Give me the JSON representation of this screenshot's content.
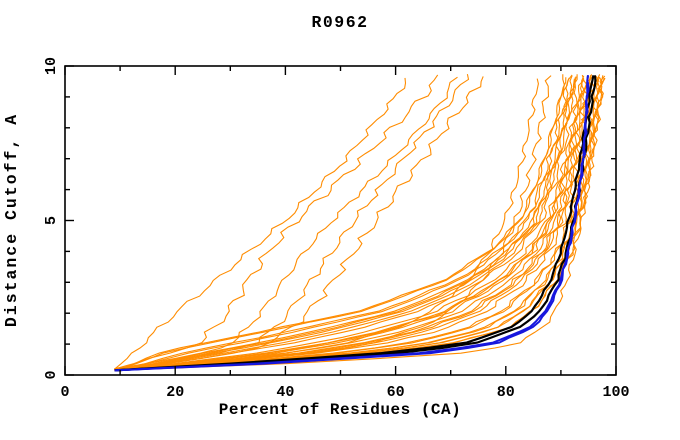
{
  "chart_data": {
    "type": "line",
    "title": "R0962",
    "xlabel": "Percent of Residues (CA)",
    "ylabel": "Distance Cutoff, A",
    "xlim": [
      0,
      100
    ],
    "ylim": [
      0,
      10
    ],
    "grid": false,
    "legend": false,
    "x_major_ticks": [
      0,
      20,
      40,
      60,
      80,
      100
    ],
    "x_minor_ticks": [
      10,
      30,
      50,
      70,
      90
    ],
    "x_tick_labels": [
      "0",
      "20",
      "40",
      "60",
      "80",
      "100"
    ],
    "y_major_ticks": [
      0,
      5,
      10
    ],
    "y_minor_ticks": [
      1,
      2,
      3,
      4,
      6,
      7,
      8,
      9
    ],
    "y_tick_labels": [
      "0",
      "5",
      "10"
    ],
    "colors": {
      "models": "#ff8c00",
      "highlight_blue": "#1717dd",
      "highlight_black": "#000000",
      "axis": "#000000",
      "background": "#ffffff"
    },
    "seed": 42,
    "apex": [
      9,
      0.15
    ],
    "cut_levels": [
      0.2,
      0.4,
      0.7,
      1,
      1.5,
      2,
      3,
      4,
      5,
      6,
      7,
      8,
      9,
      9.7
    ],
    "bundle": {
      "count": 26,
      "color": "models",
      "width": 1.1,
      "wiggle": 0.55,
      "pct_at_levels_right": [
        13,
        32,
        55,
        70,
        80,
        84.5,
        89,
        92,
        93.5,
        94.6,
        95.5,
        96.3,
        97.1,
        97.8
      ],
      "pct_at_levels_left": [
        10,
        13,
        17,
        24,
        38,
        52,
        68,
        77,
        82.5,
        85,
        87,
        88.5,
        90,
        90.6
      ]
    },
    "curves": [
      {
        "name": "outlier-model-1",
        "color": "models",
        "width": 1.1,
        "wiggle": 0.7,
        "pcts": [
          9,
          10.5,
          12.5,
          14,
          17,
          20,
          27,
          33.5,
          40,
          45.5,
          51,
          55.5,
          60,
          62.5
        ]
      },
      {
        "name": "outlier-model-2",
        "color": "models",
        "width": 1.1,
        "wiggle": 0.8,
        "pcts": [
          9,
          13,
          19,
          24,
          27,
          29.5,
          33,
          37,
          42,
          48,
          54,
          59.5,
          65,
          68
        ]
      },
      {
        "name": "outlier-model-3",
        "color": "models",
        "width": 1.1,
        "wiggle": 0.8,
        "pcts": [
          9,
          16,
          25,
          30,
          33,
          35.5,
          39.5,
          43.5,
          48.5,
          54,
          59.5,
          64.5,
          69,
          71
        ]
      },
      {
        "name": "outlier-model-4",
        "color": "models",
        "width": 1.1,
        "wiggle": 0.8,
        "pcts": [
          9,
          18,
          28,
          34,
          38,
          40.5,
          44.5,
          48.5,
          52.5,
          57,
          61.5,
          66,
          70.5,
          73
        ]
      },
      {
        "name": "outlier-model-5",
        "color": "models",
        "width": 1.1,
        "wiggle": 0.8,
        "pcts": [
          9.5,
          20,
          31,
          36.5,
          41,
          44,
          48.5,
          52.5,
          56.5,
          60.5,
          65,
          69,
          73.5,
          76
        ]
      },
      {
        "name": "outlier-model-6",
        "color": "models",
        "width": 1.1,
        "wiggle": 0.7,
        "pcts": [
          10,
          25,
          40,
          50,
          60,
          66,
          73,
          77,
          79.8,
          81.6,
          83,
          84.2,
          85.3,
          86
        ]
      },
      {
        "name": "outlier-model-7",
        "color": "models",
        "width": 1.1,
        "wiggle": 0.7,
        "pcts": [
          10.5,
          28,
          45,
          55,
          64,
          69.5,
          75.5,
          79.3,
          81.8,
          83.6,
          85,
          86.2,
          87.3,
          88
        ]
      },
      {
        "name": "lowest-model",
        "color": "models",
        "width": 1.1,
        "wiggle": 0.4,
        "pcts": [
          16,
          45,
          72,
          82,
          86.5,
          88.8,
          91,
          92.5,
          93.8,
          94.8,
          95.7,
          96.5,
          97.3,
          97.8
        ]
      },
      {
        "name": "black-curve-2",
        "color": "highlight_black",
        "width": 2.2,
        "wiggle": 0.25,
        "pcts": [
          13.5,
          33,
          57,
          72,
          80.5,
          84.5,
          88,
          90,
          91.4,
          92.5,
          93.5,
          94.3,
          95.2,
          95.8
        ]
      },
      {
        "name": "black-curve-1",
        "color": "highlight_black",
        "width": 2.2,
        "wiggle": 0.25,
        "pcts": [
          14,
          35,
          60,
          74,
          82,
          86,
          89.2,
          91,
          92.3,
          93.3,
          94.2,
          95,
          95.8,
          96.3
        ]
      },
      {
        "name": "blue-curve-2",
        "color": "highlight_blue",
        "width": 2,
        "wiggle": 0.2,
        "pcts": [
          15.5,
          40,
          66,
          78,
          84.6,
          87.4,
          90,
          91.4,
          92.5,
          93.4,
          94.1,
          94.5,
          94.8,
          95
        ]
      },
      {
        "name": "blue-curve-1",
        "color": "highlight_blue",
        "width": 2,
        "wiggle": 0.2,
        "pcts": [
          15,
          38,
          64,
          77,
          84,
          87,
          89.8,
          91.3,
          92.4,
          93.3,
          94,
          94.4,
          94.7,
          94.9
        ]
      }
    ]
  }
}
